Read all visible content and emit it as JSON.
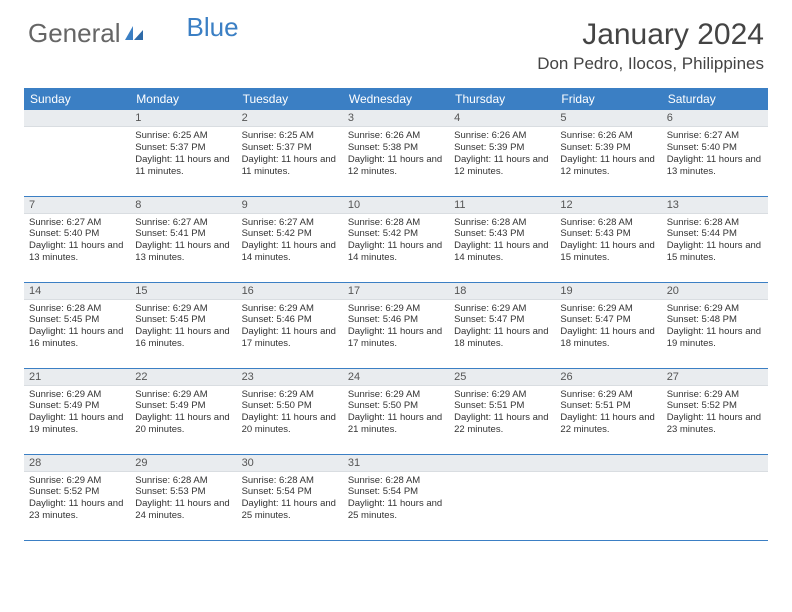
{
  "logo": {
    "part1": "General",
    "part2": "Blue"
  },
  "title": "January 2024",
  "location": "Don Pedro, Ilocos, Philippines",
  "colors": {
    "header_bg": "#3b7fc4",
    "header_text": "#ffffff",
    "daynum_bg": "#e9ecef",
    "border": "#3b7fc4",
    "logo_blue": "#3b7fc4",
    "logo_gray": "#666666",
    "body_text": "#333333"
  },
  "typography": {
    "title_fontsize": 30,
    "location_fontsize": 17,
    "logo_fontsize": 26,
    "weekday_fontsize": 12,
    "daynum_fontsize": 11,
    "body_fontsize": 9.5
  },
  "weekdays": [
    "Sunday",
    "Monday",
    "Tuesday",
    "Wednesday",
    "Thursday",
    "Friday",
    "Saturday"
  ],
  "start_offset": 1,
  "days": [
    {
      "n": 1,
      "sunrise": "6:25 AM",
      "sunset": "5:37 PM",
      "daylight": "11 hours and 11 minutes."
    },
    {
      "n": 2,
      "sunrise": "6:25 AM",
      "sunset": "5:37 PM",
      "daylight": "11 hours and 11 minutes."
    },
    {
      "n": 3,
      "sunrise": "6:26 AM",
      "sunset": "5:38 PM",
      "daylight": "11 hours and 12 minutes."
    },
    {
      "n": 4,
      "sunrise": "6:26 AM",
      "sunset": "5:39 PM",
      "daylight": "11 hours and 12 minutes."
    },
    {
      "n": 5,
      "sunrise": "6:26 AM",
      "sunset": "5:39 PM",
      "daylight": "11 hours and 12 minutes."
    },
    {
      "n": 6,
      "sunrise": "6:27 AM",
      "sunset": "5:40 PM",
      "daylight": "11 hours and 13 minutes."
    },
    {
      "n": 7,
      "sunrise": "6:27 AM",
      "sunset": "5:40 PM",
      "daylight": "11 hours and 13 minutes."
    },
    {
      "n": 8,
      "sunrise": "6:27 AM",
      "sunset": "5:41 PM",
      "daylight": "11 hours and 13 minutes."
    },
    {
      "n": 9,
      "sunrise": "6:27 AM",
      "sunset": "5:42 PM",
      "daylight": "11 hours and 14 minutes."
    },
    {
      "n": 10,
      "sunrise": "6:28 AM",
      "sunset": "5:42 PM",
      "daylight": "11 hours and 14 minutes."
    },
    {
      "n": 11,
      "sunrise": "6:28 AM",
      "sunset": "5:43 PM",
      "daylight": "11 hours and 14 minutes."
    },
    {
      "n": 12,
      "sunrise": "6:28 AM",
      "sunset": "5:43 PM",
      "daylight": "11 hours and 15 minutes."
    },
    {
      "n": 13,
      "sunrise": "6:28 AM",
      "sunset": "5:44 PM",
      "daylight": "11 hours and 15 minutes."
    },
    {
      "n": 14,
      "sunrise": "6:28 AM",
      "sunset": "5:45 PM",
      "daylight": "11 hours and 16 minutes."
    },
    {
      "n": 15,
      "sunrise": "6:29 AM",
      "sunset": "5:45 PM",
      "daylight": "11 hours and 16 minutes."
    },
    {
      "n": 16,
      "sunrise": "6:29 AM",
      "sunset": "5:46 PM",
      "daylight": "11 hours and 17 minutes."
    },
    {
      "n": 17,
      "sunrise": "6:29 AM",
      "sunset": "5:46 PM",
      "daylight": "11 hours and 17 minutes."
    },
    {
      "n": 18,
      "sunrise": "6:29 AM",
      "sunset": "5:47 PM",
      "daylight": "11 hours and 18 minutes."
    },
    {
      "n": 19,
      "sunrise": "6:29 AM",
      "sunset": "5:47 PM",
      "daylight": "11 hours and 18 minutes."
    },
    {
      "n": 20,
      "sunrise": "6:29 AM",
      "sunset": "5:48 PM",
      "daylight": "11 hours and 19 minutes."
    },
    {
      "n": 21,
      "sunrise": "6:29 AM",
      "sunset": "5:49 PM",
      "daylight": "11 hours and 19 minutes."
    },
    {
      "n": 22,
      "sunrise": "6:29 AM",
      "sunset": "5:49 PM",
      "daylight": "11 hours and 20 minutes."
    },
    {
      "n": 23,
      "sunrise": "6:29 AM",
      "sunset": "5:50 PM",
      "daylight": "11 hours and 20 minutes."
    },
    {
      "n": 24,
      "sunrise": "6:29 AM",
      "sunset": "5:50 PM",
      "daylight": "11 hours and 21 minutes."
    },
    {
      "n": 25,
      "sunrise": "6:29 AM",
      "sunset": "5:51 PM",
      "daylight": "11 hours and 22 minutes."
    },
    {
      "n": 26,
      "sunrise": "6:29 AM",
      "sunset": "5:51 PM",
      "daylight": "11 hours and 22 minutes."
    },
    {
      "n": 27,
      "sunrise": "6:29 AM",
      "sunset": "5:52 PM",
      "daylight": "11 hours and 23 minutes."
    },
    {
      "n": 28,
      "sunrise": "6:29 AM",
      "sunset": "5:52 PM",
      "daylight": "11 hours and 23 minutes."
    },
    {
      "n": 29,
      "sunrise": "6:28 AM",
      "sunset": "5:53 PM",
      "daylight": "11 hours and 24 minutes."
    },
    {
      "n": 30,
      "sunrise": "6:28 AM",
      "sunset": "5:54 PM",
      "daylight": "11 hours and 25 minutes."
    },
    {
      "n": 31,
      "sunrise": "6:28 AM",
      "sunset": "5:54 PM",
      "daylight": "11 hours and 25 minutes."
    }
  ],
  "labels": {
    "sunrise": "Sunrise:",
    "sunset": "Sunset:",
    "daylight": "Daylight:"
  }
}
